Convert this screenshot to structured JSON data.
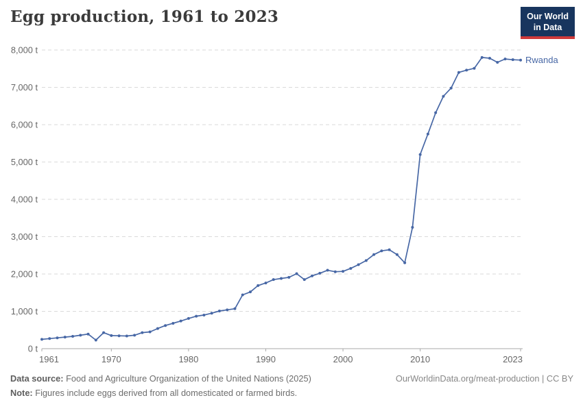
{
  "header": {
    "title": "Egg production, 1961 to 2023",
    "logo": {
      "line1": "Our World",
      "line2": "in Data"
    }
  },
  "chart_data": {
    "type": "line",
    "title": "Egg production, 1961 to 2023",
    "unit": "t",
    "entity": "Rwanda",
    "line_color": "#4767a5",
    "grid": true,
    "legend_position": "end-of-line",
    "xlim": [
      1961,
      2023
    ],
    "ylim": [
      0,
      8000
    ],
    "x_ticks": [
      1961,
      1970,
      1980,
      1990,
      2000,
      2010,
      2023
    ],
    "y_ticks": [
      0,
      1000,
      2000,
      3000,
      4000,
      5000,
      6000,
      7000,
      8000
    ],
    "x": [
      1961,
      1962,
      1963,
      1964,
      1965,
      1966,
      1967,
      1968,
      1969,
      1970,
      1971,
      1972,
      1973,
      1974,
      1975,
      1976,
      1977,
      1978,
      1979,
      1980,
      1981,
      1982,
      1983,
      1984,
      1985,
      1986,
      1987,
      1988,
      1989,
      1990,
      1991,
      1992,
      1993,
      1994,
      1995,
      1996,
      1997,
      1998,
      1999,
      2000,
      2001,
      2002,
      2003,
      2004,
      2005,
      2006,
      2007,
      2008,
      2009,
      2010,
      2011,
      2012,
      2013,
      2014,
      2015,
      2016,
      2017,
      2018,
      2019,
      2020,
      2021,
      2022,
      2023
    ],
    "series": [
      {
        "name": "Rwanda",
        "values": [
          250,
          270,
          290,
          310,
          330,
          360,
          390,
          230,
          430,
          350,
          345,
          340,
          360,
          430,
          450,
          540,
          620,
          680,
          740,
          810,
          870,
          900,
          950,
          1010,
          1040,
          1070,
          1440,
          1520,
          1690,
          1760,
          1850,
          1880,
          1910,
          2010,
          1850,
          1950,
          2020,
          2100,
          2060,
          2070,
          2150,
          2250,
          2360,
          2520,
          2620,
          2650,
          2520,
          2300,
          3250,
          5200,
          5750,
          6320,
          6760,
          6980,
          7400,
          7460,
          7510,
          7800,
          7780,
          7670,
          7760,
          7740,
          7730
        ]
      }
    ]
  },
  "footer": {
    "data_source_label": "Data source:",
    "data_source": "Food and Agriculture Organization of the United Nations (2025)",
    "note_label": "Note:",
    "note": "Figures include eggs derived from all domesticated or farmed birds.",
    "link": "OurWorldinData.org/meat-production | CC BY"
  }
}
